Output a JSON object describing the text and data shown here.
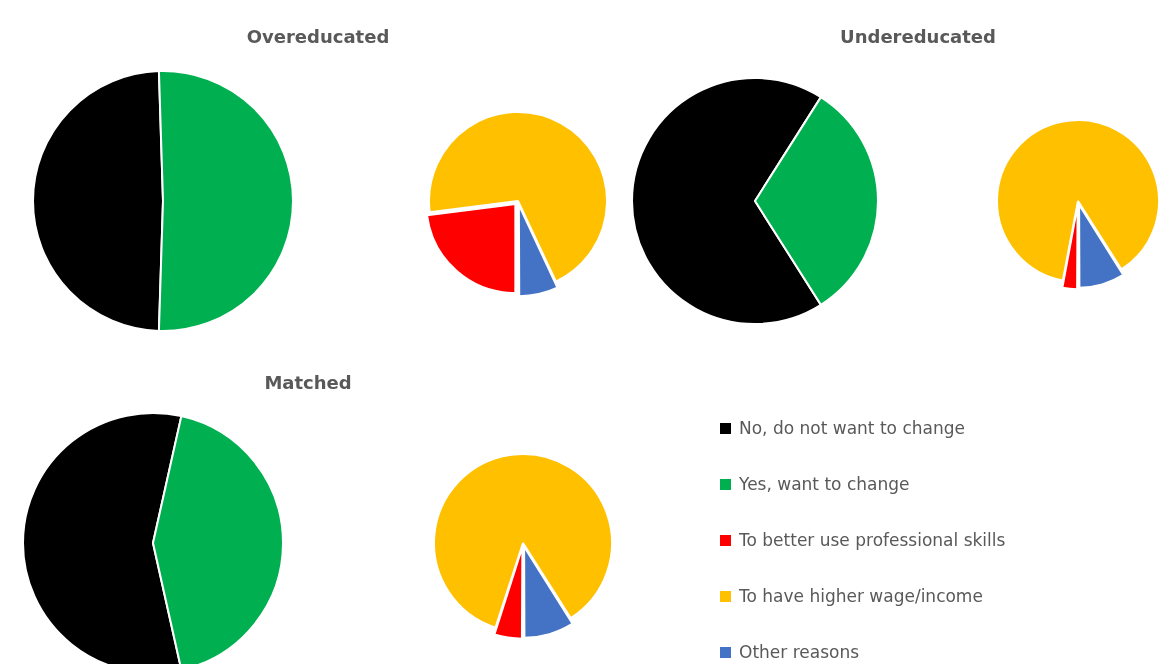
{
  "chart_data": [
    {
      "type": "pie",
      "title": "Overeducated",
      "categories": [
        "No, do not want to change",
        "Yes, want to change"
      ],
      "values": [
        49,
        51
      ],
      "colors": [
        "#000000",
        "#00b050"
      ],
      "legend": "right"
    },
    {
      "type": "pie",
      "categories": [
        "To better use professional skills",
        "To have higher wage/income",
        "Other reasons"
      ],
      "values": [
        23,
        70,
        7
      ],
      "colors": [
        "#ff0000",
        "#ffc000",
        "#4472c4"
      ],
      "legend": "right"
    },
    {
      "type": "pie",
      "title": "Undereducated",
      "categories": [
        null,
        null
      ],
      "values": [
        68,
        32
      ],
      "colors": [
        "#000000",
        "#00b050"
      ]
    },
    {
      "type": "pie",
      "categories": [
        null,
        null,
        null
      ],
      "values": [
        3,
        88,
        9
      ],
      "colors": [
        "#ff0000",
        "#ffc000",
        "#4472c4"
      ]
    },
    {
      "type": "pie",
      "title": "Matched",
      "categories": [
        null,
        null
      ],
      "values": [
        57,
        43
      ],
      "colors": [
        "#000000",
        "#00b050"
      ]
    },
    {
      "type": "pie",
      "categories": [
        null,
        null,
        null
      ],
      "values": [
        5,
        86,
        9
      ],
      "colors": [
        "#ff0000",
        "#ffc000",
        "#4472c4"
      ]
    }
  ]
}
